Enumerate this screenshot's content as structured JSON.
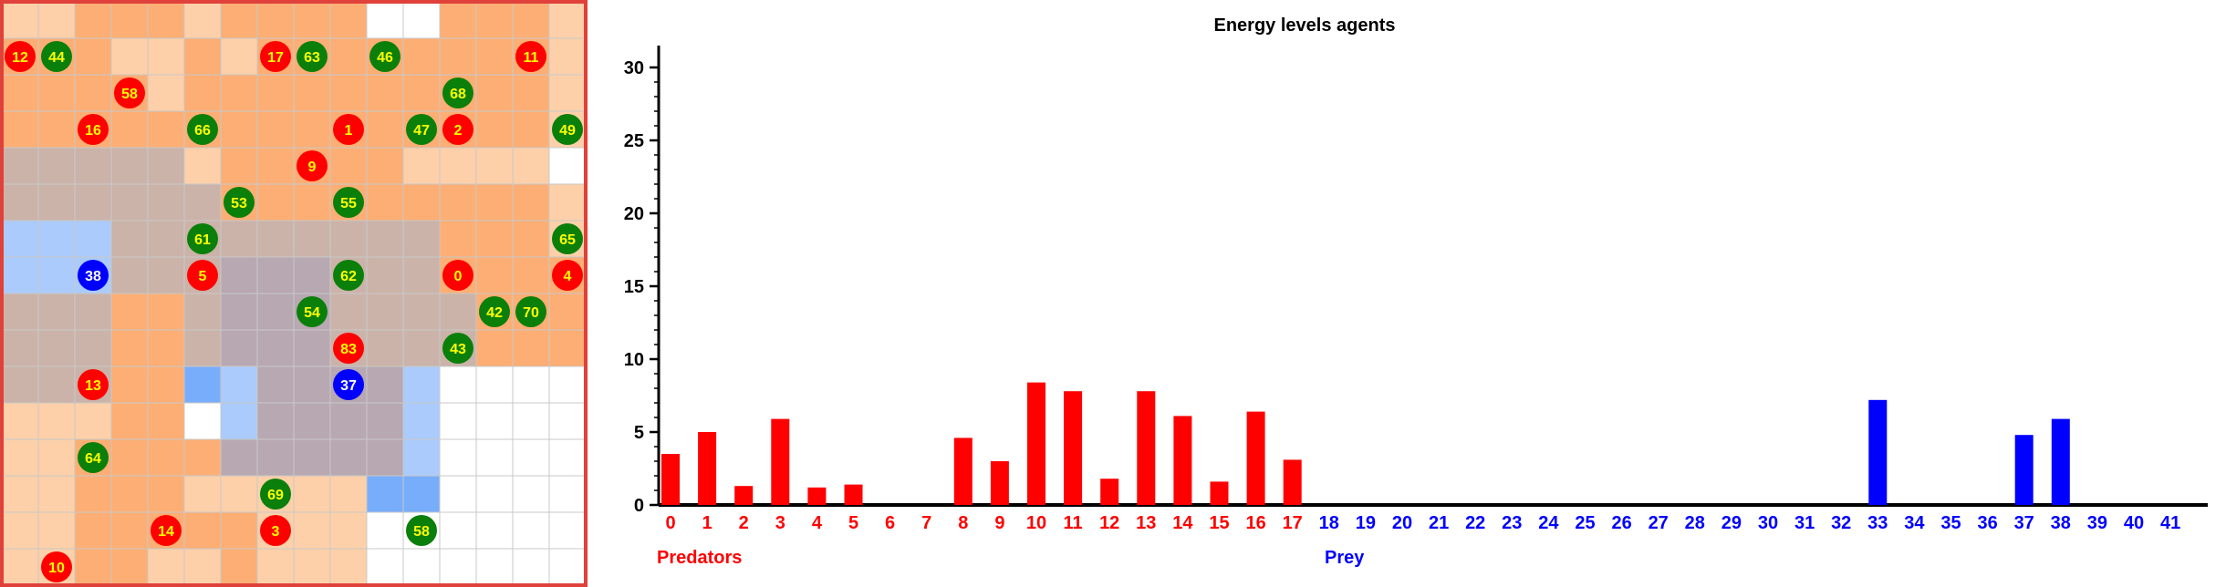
{
  "grid": {
    "rows": 16,
    "cols": 16,
    "colors": {
      "empty": "#ffffff",
      "light_orange": "#fdd0a9",
      "orange": "#fdae74",
      "dark_orange": "#fc9d5a",
      "gray": "#cbb3a9",
      "dark_gray": "#b8a8b2",
      "blue_light": "#aacbfb",
      "blue": "#78adfb",
      "border": "#e0413a",
      "gridline": "#c8c8c8"
    },
    "cells": [
      "LLOOOLOOOOWWOOOL",
      "OOOLLOLOOOOOOOOL",
      "OOOOLOOOOOOOOOOL",
      "OOOOOOOOOOOOOOOL",
      "GGGGGLOOOOOLLLLW",
      "GGGGGGOOOOOOOOOL",
      "BBBGGGGGGGGGOOOL",
      "BBBGGGDDDGGGOOOO",
      "GGGOOGDDDGGGGOOO",
      "GGGOOGDDDGGGGOOO",
      "GGGOOCBDDDDBWWWW",
      "LLLOOWBDDDDBWWWW",
      "LLOOOODDDDDBWWWW",
      "LLOOOLLLLLCCWWWW",
      "LLOOOOOLLLWWWWWW",
      "LLOOLLOLLLWWWWWW"
    ],
    "agents": [
      {
        "id": "12",
        "kind": "predator",
        "col": 0,
        "row": 1
      },
      {
        "id": "44",
        "kind": "prey",
        "col": 1,
        "row": 1
      },
      {
        "id": "17",
        "kind": "predator",
        "col": 7,
        "row": 1
      },
      {
        "id": "63",
        "kind": "prey",
        "col": 8,
        "row": 1
      },
      {
        "id": "46",
        "kind": "prey",
        "col": 10,
        "row": 1
      },
      {
        "id": "11",
        "kind": "predator",
        "col": 14,
        "row": 1
      },
      {
        "id": "58",
        "kind": "predator",
        "col": 3,
        "row": 2
      },
      {
        "id": "68",
        "kind": "prey",
        "col": 12,
        "row": 2
      },
      {
        "id": "16",
        "kind": "predator",
        "col": 2,
        "row": 3
      },
      {
        "id": "66",
        "kind": "prey",
        "col": 5,
        "row": 3
      },
      {
        "id": "1",
        "kind": "predator",
        "col": 9,
        "row": 3
      },
      {
        "id": "47",
        "kind": "prey",
        "col": 11,
        "row": 3
      },
      {
        "id": "2",
        "kind": "predator",
        "col": 12,
        "row": 3
      },
      {
        "id": "49",
        "kind": "prey",
        "col": 15,
        "row": 3
      },
      {
        "id": "9",
        "kind": "predator",
        "col": 8,
        "row": 4
      },
      {
        "id": "53",
        "kind": "prey",
        "col": 6,
        "row": 5
      },
      {
        "id": "55",
        "kind": "prey",
        "col": 9,
        "row": 5
      },
      {
        "id": "61",
        "kind": "prey",
        "col": 5,
        "row": 6
      },
      {
        "id": "65",
        "kind": "prey",
        "col": 15,
        "row": 6
      },
      {
        "id": "38",
        "kind": "blue",
        "col": 2,
        "row": 7
      },
      {
        "id": "5",
        "kind": "predator",
        "col": 5,
        "row": 7
      },
      {
        "id": "62",
        "kind": "prey",
        "col": 9,
        "row": 7
      },
      {
        "id": "0",
        "kind": "predator",
        "col": 12,
        "row": 7
      },
      {
        "id": "4",
        "kind": "predator",
        "col": 15,
        "row": 7
      },
      {
        "id": "54",
        "kind": "prey",
        "col": 8,
        "row": 8
      },
      {
        "id": "42",
        "kind": "prey",
        "col": 13,
        "row": 8
      },
      {
        "id": "70",
        "kind": "prey",
        "col": 14,
        "row": 8
      },
      {
        "id": "83",
        "kind": "predator",
        "col": 9,
        "row": 9
      },
      {
        "id": "43",
        "kind": "prey",
        "col": 12,
        "row": 9
      },
      {
        "id": "13",
        "kind": "predator",
        "col": 2,
        "row": 10
      },
      {
        "id": "37",
        "kind": "blue",
        "col": 9,
        "row": 10
      },
      {
        "id": "64",
        "kind": "prey",
        "col": 2,
        "row": 12
      },
      {
        "id": "69",
        "kind": "prey",
        "col": 7,
        "row": 13
      },
      {
        "id": "14",
        "kind": "predator",
        "col": 4,
        "row": 14
      },
      {
        "id": "3",
        "kind": "predator",
        "col": 7,
        "row": 14
      },
      {
        "id": "58",
        "kind": "prey",
        "col": 11,
        "row": 14
      },
      {
        "id": "10",
        "kind": "predator",
        "col": 1,
        "row": 15
      }
    ],
    "agent_colors": {
      "predator": "#ff0000",
      "prey": "#0a7f0a",
      "blue": "#0000ff",
      "label_on_red": "#ffff00",
      "label_on_green": "#ffff00",
      "label_on_blue": "#ffffff"
    }
  },
  "chart_data": {
    "type": "bar",
    "title": "Energy levels agents",
    "categories": [
      "0",
      "1",
      "2",
      "3",
      "4",
      "5",
      "6",
      "7",
      "8",
      "9",
      "10",
      "11",
      "12",
      "13",
      "14",
      "15",
      "16",
      "17",
      "18",
      "19",
      "20",
      "21",
      "22",
      "23",
      "24",
      "25",
      "26",
      "27",
      "28",
      "29",
      "30",
      "31",
      "32",
      "33",
      "34",
      "35",
      "36",
      "37",
      "38",
      "39",
      "40",
      "41"
    ],
    "values": [
      3.5,
      5.0,
      1.3,
      5.9,
      1.2,
      1.4,
      0,
      0,
      4.6,
      3.0,
      8.4,
      7.8,
      1.8,
      7.8,
      6.1,
      1.6,
      6.4,
      3.1,
      0,
      0,
      0,
      0,
      0,
      0,
      0,
      0,
      0,
      0,
      0,
      0,
      0,
      0,
      0,
      7.2,
      0,
      0,
      0,
      4.8,
      5.9,
      0,
      0,
      0
    ],
    "predator_count": 18,
    "ylim": [
      0,
      30
    ],
    "yticks": [
      0,
      5,
      10,
      15,
      20,
      25,
      30
    ],
    "group_labels": [
      "Predators",
      "Prey"
    ],
    "colors": {
      "predators": "#ff0000",
      "prey": "#0000ff",
      "axis": "#000000"
    }
  }
}
